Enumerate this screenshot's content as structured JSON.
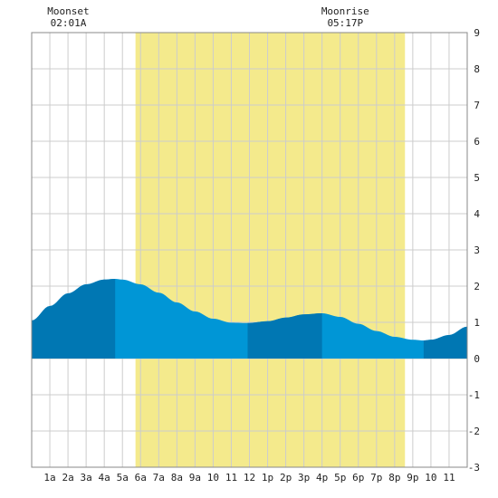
{
  "chart_data": {
    "type": "area",
    "title": "",
    "xlabel": "",
    "ylabel": "",
    "ylim": [
      -3,
      9
    ],
    "xlim": [
      0,
      24
    ],
    "grid": true,
    "x_tick_labels": [
      "1a",
      "2a",
      "3a",
      "4a",
      "5a",
      "6a",
      "7a",
      "8a",
      "9a",
      "10",
      "11",
      "12",
      "1p",
      "2p",
      "3p",
      "4p",
      "5p",
      "6p",
      "7p",
      "8p",
      "9p",
      "10",
      "11"
    ],
    "y_tick_labels": [
      "-3",
      "-2",
      "-1",
      "0",
      "1",
      "2",
      "3",
      "4",
      "5",
      "6",
      "7",
      "8",
      "9"
    ],
    "daylight": {
      "start_hour": 5.72,
      "end_hour": 20.57,
      "color": "#f4ea8c"
    },
    "moon_events": [
      {
        "label": "Moonset",
        "time": "02:01A",
        "hour": 2.02
      },
      {
        "label": "Moonrise",
        "time": "05:17P",
        "hour": 17.28
      }
    ],
    "tide_series": {
      "name": "",
      "x": [
        0,
        1,
        2,
        3,
        4,
        4.6,
        5,
        6,
        7,
        8,
        9,
        10,
        11,
        11.9,
        13,
        14,
        15,
        16,
        17,
        18,
        19,
        20,
        21,
        21.6,
        22,
        23,
        24
      ],
      "y": [
        1.05,
        1.45,
        1.8,
        2.05,
        2.18,
        2.2,
        2.18,
        2.05,
        1.82,
        1.55,
        1.3,
        1.1,
        0.99,
        0.98,
        1.03,
        1.13,
        1.22,
        1.25,
        1.15,
        0.96,
        0.76,
        0.6,
        0.52,
        0.5,
        0.52,
        0.65,
        0.88
      ]
    },
    "colors": {
      "water": "#0096d6",
      "water_dark": "#0077b3",
      "grid": "#cccccc",
      "border": "#888888"
    },
    "dark_bands": [
      [
        0,
        4.6
      ],
      [
        11.9,
        16
      ],
      [
        21.6,
        24
      ]
    ]
  }
}
